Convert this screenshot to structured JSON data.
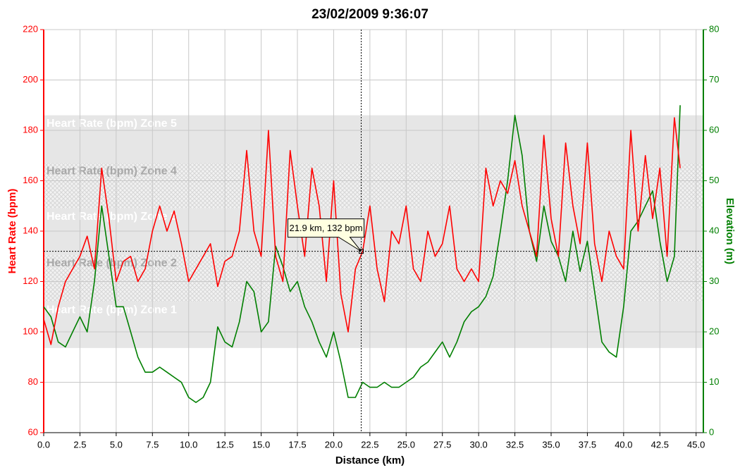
{
  "chart_data": {
    "type": "line",
    "title": "23/02/2009 9:36:07",
    "xlabel": "Distance (km)",
    "ylabel": "Heart Rate (bpm)",
    "y2label": "Elevation (m)",
    "xlim": [
      0,
      45.5
    ],
    "ylim": [
      60,
      220
    ],
    "y2lim": [
      0,
      80
    ],
    "xticks": [
      {
        "value": 0,
        "label": "0.0"
      },
      2.5,
      {
        "value": 5,
        "label": "5.0"
      },
      7.5,
      {
        "value": 10,
        "label": "10.0"
      },
      12.5,
      {
        "value": 15,
        "label": "15.0"
      },
      17.5,
      {
        "value": 20,
        "label": "20.0"
      },
      22.5,
      {
        "value": 25,
        "label": "25.0"
      },
      27.5,
      {
        "value": 30,
        "label": "30.0"
      },
      32.5,
      {
        "value": 35,
        "label": "35.0"
      },
      37.5,
      {
        "value": 40,
        "label": "40.0"
      },
      42.5,
      {
        "value": 45,
        "label": "45.0"
      }
    ],
    "yticks": [
      60,
      80,
      100,
      120,
      140,
      160,
      180,
      200,
      220
    ],
    "y2ticks": [
      0,
      10,
      20,
      30,
      40,
      50,
      60,
      70,
      80
    ],
    "grid": true,
    "zones": [
      {
        "label": "Heart Rate (bpm) Zone 1",
        "range": [
          93.6,
          112
        ],
        "fill": "solid"
      },
      {
        "label": "Heart Rate (bpm) Zone 2",
        "range": [
          112,
          130.5
        ],
        "fill": "hatch"
      },
      {
        "label": "Heart Rate (bpm) Zone 3",
        "range": [
          130.5,
          149
        ],
        "fill": "solid"
      },
      {
        "label": "Heart Rate (bpm) Zone 4",
        "range": [
          149,
          167
        ],
        "fill": "hatch"
      },
      {
        "label": "Heart Rate (bpm) Zone 5",
        "range": [
          167,
          186
        ],
        "fill": "solid"
      }
    ],
    "x": [
      0,
      0.5,
      1,
      1.5,
      2,
      2.5,
      3,
      3.5,
      4,
      4.5,
      5,
      5.5,
      6,
      6.5,
      7,
      7.5,
      8,
      8.5,
      9,
      9.5,
      10,
      10.5,
      11,
      11.5,
      12,
      12.5,
      13,
      13.5,
      14,
      14.5,
      15,
      15.5,
      16,
      16.5,
      17,
      17.5,
      18,
      18.5,
      19,
      19.5,
      20,
      20.5,
      21,
      21.5,
      22,
      22.5,
      23,
      23.5,
      24,
      24.5,
      25,
      25.5,
      26,
      26.5,
      27,
      27.5,
      28,
      28.5,
      29,
      29.5,
      30,
      30.5,
      31,
      31.5,
      32,
      32.5,
      33,
      33.5,
      34,
      34.5,
      35,
      35.5,
      36,
      36.5,
      37,
      37.5,
      38,
      38.5,
      39,
      39.5,
      40,
      40.5,
      41,
      41.5,
      42,
      42.5,
      43,
      43.5,
      43.9
    ],
    "series": [
      {
        "name": "Heart Rate (bpm)",
        "color": "#ff0000",
        "axis": "y",
        "values": [
          105,
          95,
          110,
          120,
          125,
          130,
          138,
          125,
          165,
          145,
          120,
          128,
          130,
          120,
          125,
          140,
          150,
          140,
          148,
          135,
          120,
          125,
          130,
          135,
          118,
          128,
          130,
          140,
          172,
          140,
          130,
          180,
          130,
          120,
          172,
          150,
          130,
          165,
          150,
          120,
          160,
          115,
          100,
          125,
          132,
          150,
          125,
          112,
          140,
          135,
          150,
          125,
          120,
          140,
          130,
          135,
          150,
          125,
          120,
          125,
          120,
          165,
          150,
          160,
          155,
          168,
          150,
          140,
          130,
          178,
          145,
          130,
          175,
          150,
          135,
          175,
          135,
          120,
          140,
          130,
          125,
          180,
          140,
          170,
          145,
          165,
          130,
          185,
          165
        ]
      },
      {
        "name": "Elevation (m)",
        "color": "#007f00",
        "axis": "y2",
        "values": [
          25,
          23,
          18,
          17,
          20,
          23,
          20,
          30,
          45,
          35,
          25,
          25,
          20,
          15,
          12,
          12,
          13,
          12,
          11,
          10,
          7,
          6,
          7,
          10,
          21,
          18,
          17,
          22,
          30,
          28,
          20,
          22,
          37,
          33,
          28,
          30,
          25,
          22,
          18,
          15,
          20,
          14,
          7,
          7,
          10,
          9,
          9,
          10,
          9,
          9,
          10,
          11,
          13,
          14,
          16,
          18,
          15,
          18,
          22,
          24,
          25,
          27,
          31,
          40,
          50,
          63,
          55,
          40,
          34,
          45,
          38,
          35,
          30,
          40,
          32,
          38,
          28,
          18,
          16,
          15,
          25,
          40,
          42,
          45,
          48,
          38,
          30,
          35,
          65
        ]
      }
    ],
    "crosshair": {
      "x": 21.9,
      "y": 132,
      "label": "21.9 km, 132 bpm"
    }
  }
}
